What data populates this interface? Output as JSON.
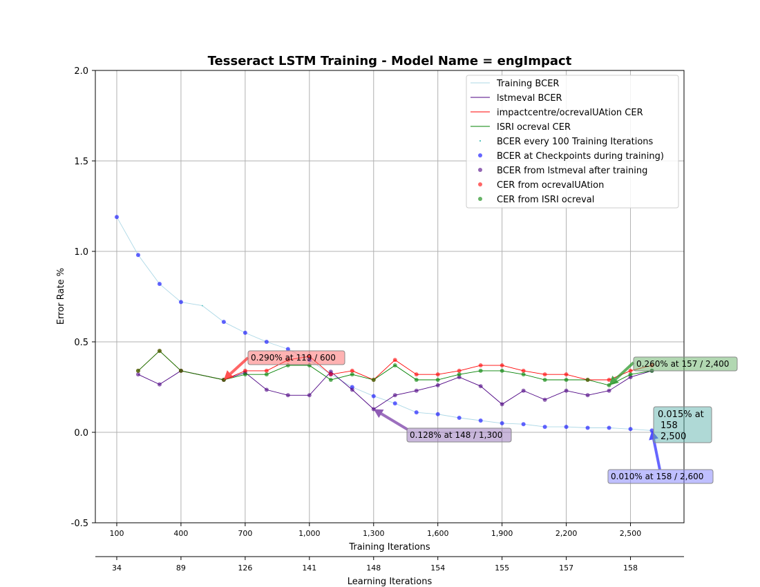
{
  "chart_data": {
    "type": "line",
    "title": "Tesseract LSTM Training - Model Name = engImpact",
    "xlabel": "Training Iterations",
    "ylabel": "Error Rate %",
    "secondary_xlabel": "Learning Iterations",
    "xlim": [
      0,
      2750
    ],
    "ylim": [
      -0.5,
      2.0
    ],
    "grid": true,
    "legend_position": "top-right",
    "x_ticks": [
      100,
      400,
      700,
      1000,
      1300,
      1600,
      1900,
      2200,
      2500
    ],
    "x_tick_labels": [
      "100",
      "400",
      "700",
      "1,000",
      "1,300",
      "1,600",
      "1,900",
      "2,200",
      "2,500"
    ],
    "y_ticks": [
      -0.5,
      0.0,
      0.5,
      1.0,
      1.5,
      2.0
    ],
    "y_tick_labels": [
      "-0.5",
      "0.0",
      "0.5",
      "1.0",
      "1.5",
      "2.0"
    ],
    "secondary_x_ticks": [
      100,
      400,
      700,
      1000,
      1300,
      1600,
      1900,
      2200,
      2500
    ],
    "secondary_x_tick_labels": [
      "34",
      "89",
      "126",
      "141",
      "148",
      "154",
      "155",
      "157",
      "158"
    ],
    "series": [
      {
        "name": "Training BCER",
        "style": "line",
        "color": "#add8e6",
        "x": [
          100,
          200,
          300,
          400,
          500,
          600,
          700,
          800,
          900,
          1000,
          1100,
          1200,
          1300,
          1400,
          1500,
          1600,
          1700,
          1800,
          1900,
          2000,
          2100,
          2200,
          2300,
          2400,
          2500,
          2600
        ],
        "y": [
          1.19,
          0.98,
          0.82,
          0.72,
          0.7,
          0.61,
          0.55,
          0.5,
          0.46,
          0.4,
          0.32,
          0.25,
          0.2,
          0.16,
          0.11,
          0.1,
          0.08,
          0.065,
          0.05,
          0.045,
          0.03,
          0.03,
          0.025,
          0.025,
          0.018,
          0.01
        ]
      },
      {
        "name": "lstmeval BCER",
        "style": "line",
        "color": "#4b0082",
        "x": [
          200,
          300,
          400,
          600,
          700,
          800,
          900,
          1000,
          1100,
          1200,
          1300,
          1400,
          1500,
          1600,
          1700,
          1800,
          1900,
          2000,
          2100,
          2200,
          2300,
          2400,
          2500,
          2600
        ],
        "y": [
          0.32,
          0.265,
          0.34,
          0.29,
          0.33,
          0.235,
          0.205,
          0.205,
          0.335,
          0.235,
          0.128,
          0.205,
          0.23,
          0.26,
          0.305,
          0.255,
          0.155,
          0.23,
          0.18,
          0.23,
          0.205,
          0.23,
          0.305,
          0.34
        ]
      },
      {
        "name": "impactcentre/ocrevalUAtion CER",
        "style": "line",
        "color": "#ff0000",
        "x": [
          200,
          300,
          400,
          600,
          700,
          800,
          900,
          1000,
          1100,
          1200,
          1300,
          1400,
          1500,
          1600,
          1700,
          1800,
          1900,
          2000,
          2100,
          2200,
          2300,
          2400,
          2500,
          2600
        ],
        "y": [
          0.34,
          0.45,
          0.34,
          0.29,
          0.34,
          0.34,
          0.4,
          0.42,
          0.32,
          0.34,
          0.29,
          0.4,
          0.32,
          0.32,
          0.34,
          0.37,
          0.37,
          0.34,
          0.32,
          0.32,
          0.29,
          0.29,
          0.34,
          0.37
        ]
      },
      {
        "name": "ISRI ocreval CER",
        "style": "line",
        "color": "#008000",
        "x": [
          200,
          300,
          400,
          600,
          700,
          800,
          900,
          1000,
          1100,
          1200,
          1300,
          1400,
          1500,
          1600,
          1700,
          1800,
          1900,
          2000,
          2100,
          2200,
          2300,
          2400,
          2500,
          2600
        ],
        "y": [
          0.34,
          0.45,
          0.34,
          0.29,
          0.32,
          0.32,
          0.37,
          0.37,
          0.29,
          0.32,
          0.29,
          0.37,
          0.29,
          0.29,
          0.32,
          0.34,
          0.34,
          0.32,
          0.29,
          0.29,
          0.29,
          0.26,
          0.32,
          0.34
        ]
      },
      {
        "name": "BCER every 100 Training Iterations",
        "style": "scatter-small",
        "color": "#20b2aa",
        "x": [
          500
        ],
        "y": [
          0.7
        ]
      },
      {
        "name": "BCER at Checkpoints during training)",
        "style": "scatter",
        "color": "#0000ff",
        "x": [
          100,
          200,
          300,
          400,
          600,
          700,
          800,
          900,
          1000,
          1100,
          1200,
          1300,
          1400,
          1500,
          1600,
          1700,
          1800,
          1900,
          2000,
          2100,
          2200,
          2300,
          2400,
          2500,
          2600
        ],
        "y": [
          1.19,
          0.98,
          0.82,
          0.72,
          0.61,
          0.55,
          0.5,
          0.46,
          0.4,
          0.32,
          0.25,
          0.2,
          0.16,
          0.11,
          0.1,
          0.08,
          0.065,
          0.05,
          0.045,
          0.03,
          0.03,
          0.025,
          0.025,
          0.018,
          0.01
        ]
      },
      {
        "name": "BCER from lstmeval after training",
        "style": "scatter",
        "color": "#4b0082",
        "x": [
          200,
          300,
          400,
          600,
          700,
          800,
          900,
          1000,
          1100,
          1200,
          1300,
          1400,
          1500,
          1600,
          1700,
          1800,
          1900,
          2000,
          2100,
          2200,
          2300,
          2400,
          2500,
          2600
        ],
        "y": [
          0.32,
          0.265,
          0.34,
          0.29,
          0.33,
          0.235,
          0.205,
          0.205,
          0.335,
          0.235,
          0.128,
          0.205,
          0.23,
          0.26,
          0.305,
          0.255,
          0.155,
          0.23,
          0.18,
          0.23,
          0.205,
          0.23,
          0.305,
          0.34
        ]
      },
      {
        "name": "CER from ocrevalUAtion",
        "style": "scatter",
        "color": "#ff0000",
        "x": [
          200,
          300,
          400,
          600,
          700,
          800,
          900,
          1000,
          1100,
          1200,
          1300,
          1400,
          1500,
          1600,
          1700,
          1800,
          1900,
          2000,
          2100,
          2200,
          2300,
          2400,
          2500,
          2600
        ],
        "y": [
          0.34,
          0.45,
          0.34,
          0.29,
          0.34,
          0.34,
          0.4,
          0.42,
          0.32,
          0.34,
          0.29,
          0.4,
          0.32,
          0.32,
          0.34,
          0.37,
          0.37,
          0.34,
          0.32,
          0.32,
          0.29,
          0.29,
          0.34,
          0.37
        ]
      },
      {
        "name": "CER from ISRI ocreval",
        "style": "scatter",
        "color": "#008000",
        "x": [
          200,
          300,
          400,
          600,
          700,
          800,
          900,
          1000,
          1100,
          1200,
          1300,
          1400,
          1500,
          1600,
          1700,
          1800,
          1900,
          2000,
          2100,
          2200,
          2300,
          2400,
          2500,
          2600
        ],
        "y": [
          0.34,
          0.45,
          0.34,
          0.29,
          0.32,
          0.32,
          0.37,
          0.37,
          0.29,
          0.32,
          0.29,
          0.37,
          0.29,
          0.29,
          0.32,
          0.34,
          0.34,
          0.32,
          0.29,
          0.29,
          0.29,
          0.26,
          0.32,
          0.34
        ]
      }
    ],
    "annotations": [
      {
        "text": "0.290% at 119 / 600",
        "point": [
          600,
          0.29
        ],
        "box_color": "#ff6666",
        "arrow_color": "#ff3333"
      },
      {
        "text": "0.128% at 148 / 1,300",
        "point": [
          1300,
          0.128
        ],
        "box_color": "#9370b8",
        "arrow_color": "#7b3fa8"
      },
      {
        "text": "0.260% at 157 / 2,400",
        "point": [
          2400,
          0.26
        ],
        "box_color": "#66b266",
        "arrow_color": "#2e9a2e"
      },
      {
        "text": "0.010% at 158 / 2,600",
        "point": [
          2600,
          0.01
        ],
        "box_color": "#8080ff",
        "arrow_color": "#3333ff"
      },
      {
        "text": "0.015% at\n158\n2,500",
        "point": [
          2500,
          0.018
        ],
        "box_color": "#5fb3ad",
        "arrow_color": "none"
      }
    ]
  }
}
